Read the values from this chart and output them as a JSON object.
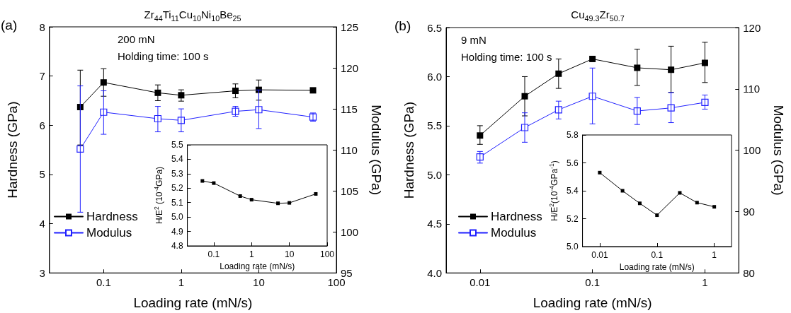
{
  "chart_data": [
    {
      "type": "line",
      "title": "Zr$_{44}$Ti$_{11}$Cu$_{10}$Ni$_{10}$Be$_{25}$",
      "xlabel": "Loading rate (mN/s)",
      "ylabel": "Hardness (GPa)",
      "y2label": "Modulus (GPa)",
      "annotations": [
        "(a)",
        "200 mN",
        "Holding time: 100 s"
      ],
      "x": [
        0.05,
        0.1,
        0.5,
        1,
        5,
        10,
        50
      ],
      "series": [
        {
          "name": "Hardness",
          "color": "#000000",
          "values": [
            6.37,
            6.87,
            6.66,
            6.61,
            6.7,
            6.72,
            6.71
          ],
          "errors": [
            [
              5.6,
              7.12
            ],
            [
              6.59,
              7.15
            ],
            [
              6.5,
              6.82
            ],
            [
              6.49,
              6.72
            ],
            [
              6.56,
              6.84
            ],
            [
              6.51,
              6.92
            ],
            [
              6.67,
              6.75
            ]
          ]
        },
        {
          "name": "Modulus",
          "color": "#2020ff",
          "axis": "y2",
          "values": [
            110.1,
            114.6,
            113.8,
            113.6,
            114.7,
            114.9,
            114.0
          ],
          "errors": [
            [
              102.4,
              117.8
            ],
            [
              111.9,
              117.2
            ],
            [
              112.2,
              115.3
            ],
            [
              112.2,
              115.0
            ],
            [
              114.1,
              115.3
            ],
            [
              112.6,
              117.3
            ],
            [
              113.5,
              114.5
            ]
          ]
        }
      ],
      "xlim": [
        0.02,
        100
      ],
      "xticks": [
        0.1,
        1,
        10,
        100
      ],
      "ylim": [
        3,
        8
      ],
      "yticks": [
        3,
        4,
        5,
        6,
        7,
        8
      ],
      "y2lim": [
        95,
        125
      ],
      "y2ticks": [
        95,
        100,
        105,
        110,
        115,
        120,
        125
      ],
      "log": "x",
      "grid": false,
      "legend": "bottom left",
      "marker": "square"
    },
    {
      "type": "line",
      "xlabel": "Loading rate (mN/s)",
      "ylabel": "H/E$^{2}$ (10$^{-4}$GPa)",
      "x": [
        0.05,
        0.1,
        0.5,
        1,
        5,
        10,
        50
      ],
      "values": [
        5.25,
        5.235,
        5.145,
        5.12,
        5.095,
        5.098,
        5.16
      ],
      "color": "#000000",
      "xlim": [
        0.02,
        100
      ],
      "xticks": [
        0.1,
        1,
        10,
        100
      ],
      "ylim": [
        4.8,
        5.5
      ],
      "yticks": [
        4.8,
        4.9,
        {
          "value": 5,
          "label": "5.0"
        },
        5.1,
        5.2,
        5.3,
        5.4,
        5.5
      ],
      "log": "x",
      "grid": false,
      "marker": "square"
    },
    {
      "type": "line",
      "title": "Cu$_{49.3}$Zr$_{50.7}$",
      "xlabel": "Loading rate (mN/s)",
      "ylabel": "Hardness (GPa)",
      "y2label": "Modulus (GPa)",
      "annotations": [
        "(b)",
        "9 mN",
        "Holding time: 100 s"
      ],
      "x": [
        0.01,
        0.025,
        0.05,
        0.1,
        0.25,
        0.5,
        1
      ],
      "series": [
        {
          "name": "Hardness",
          "color": "#000000",
          "values": [
            5.4,
            5.8,
            6.03,
            6.18,
            6.09,
            6.07,
            6.14
          ],
          "errors": [
            [
              5.31,
              5.5
            ],
            [
              5.6,
              6.0
            ],
            [
              5.88,
              6.18
            ],
            [
              6.16,
              6.2
            ],
            [
              5.91,
              6.28
            ],
            [
              5.84,
              6.31
            ],
            [
              5.94,
              6.35
            ]
          ]
        },
        {
          "name": "Modulus",
          "color": "#2020ff",
          "axis": "y2",
          "values": [
            98.9,
            103.7,
            106.6,
            108.8,
            106.4,
            106.9,
            107.8
          ],
          "errors": [
            [
              97.9,
              99.8
            ],
            [
              101.3,
              106.1
            ],
            [
              105.1,
              108.0
            ],
            [
              104.3,
              113.4
            ],
            [
              104.2,
              108.6
            ],
            [
              104.5,
              109.4
            ],
            [
              106.7,
              109.0
            ]
          ]
        }
      ],
      "xlim": [
        0.005,
        2
      ],
      "xticks": [
        0.01,
        0.1,
        1
      ],
      "ylim": [
        4,
        6.5
      ],
      "yticks": [
        {
          "value": 4,
          "label": "4.0"
        },
        4.5,
        {
          "value": 5,
          "label": "5.0"
        },
        5.5,
        {
          "value": 6,
          "label": "6.0"
        },
        6.5
      ],
      "y2lim": [
        80,
        120
      ],
      "y2ticks": [
        80,
        90,
        100,
        110,
        120
      ],
      "log": "x",
      "grid": false,
      "legend": "bottom left",
      "marker": "square"
    },
    {
      "type": "line",
      "xlabel": "Loading rate (mN/s)",
      "ylabel": "H/E$^{2}$(10$^{-4}$GPa$^{-1}$)",
      "x": [
        0.01,
        0.025,
        0.05,
        0.1,
        0.25,
        0.5,
        1
      ],
      "values": [
        5.53,
        5.4,
        5.31,
        5.225,
        5.385,
        5.315,
        5.285
      ],
      "color": "#000000",
      "xlim": [
        0.005,
        2
      ],
      "xticks": [
        0.01,
        0.1,
        1
      ],
      "ylim": [
        5,
        5.8
      ],
      "yticks": [
        {
          "value": 5,
          "label": "5.0"
        },
        5.2,
        5.4,
        5.6,
        5.8
      ],
      "log": "x",
      "grid": false,
      "marker": "square"
    }
  ]
}
